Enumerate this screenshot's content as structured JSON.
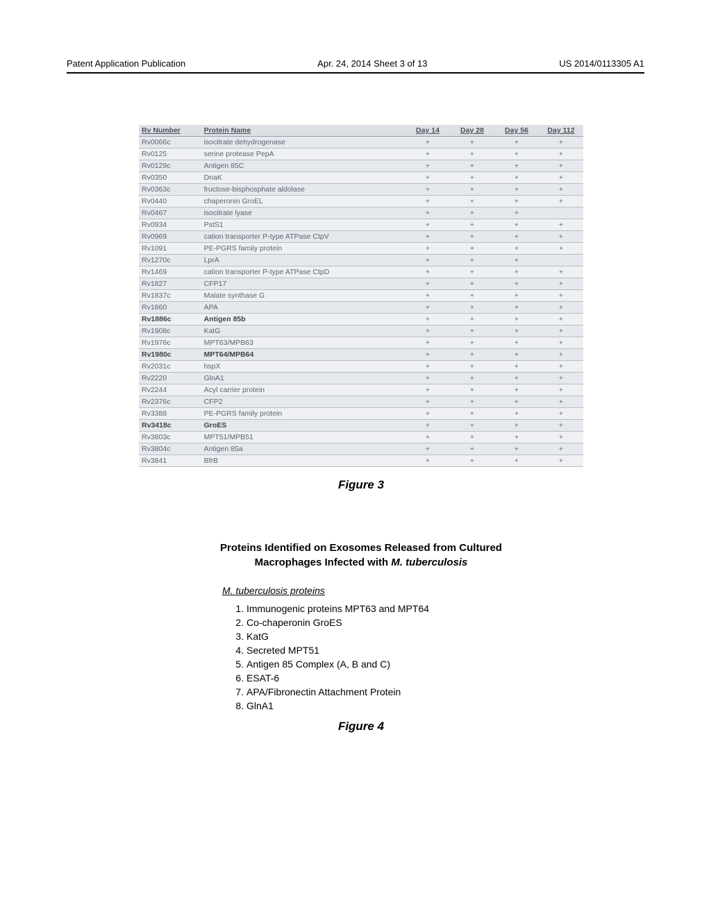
{
  "header": {
    "left": "Patent Application Publication",
    "mid": "Apr. 24, 2014  Sheet 3 of 13",
    "right": "US 2014/0113305 A1"
  },
  "figure3": {
    "caption": "Figure 3",
    "columns": {
      "rv": "Rv Number",
      "protein": "Protein Name",
      "d14": "Day 14",
      "d28": "Day 28",
      "d56": "Day 56",
      "d112": "Day 112"
    },
    "rows": [
      {
        "rv": "Rv0066c",
        "name": "isocitrate dehydrogenase",
        "m": [
          "+",
          "+",
          "+",
          "+"
        ],
        "bold": false
      },
      {
        "rv": "Rv0125",
        "name": "serine protease PepA",
        "m": [
          "+",
          "+",
          "+",
          "+"
        ],
        "bold": false
      },
      {
        "rv": "Rv0129c",
        "name": "Antigen 85C",
        "m": [
          "+",
          "+",
          "+",
          "+"
        ],
        "bold": false
      },
      {
        "rv": "Rv0350",
        "name": "DnaK",
        "m": [
          "+",
          "+",
          "+",
          "+"
        ],
        "bold": false
      },
      {
        "rv": "Rv0363c",
        "name": "fructose-bisphosphate aldolase",
        "m": [
          "+",
          "+",
          "+",
          "+"
        ],
        "bold": false
      },
      {
        "rv": "Rv0440",
        "name": "chaperonin GroEL",
        "m": [
          "+",
          "+",
          "+",
          "+"
        ],
        "bold": false
      },
      {
        "rv": "Rv0467",
        "name": "isocitrate lyase",
        "m": [
          "+",
          "+",
          "+",
          ""
        ],
        "bold": false
      },
      {
        "rv": "Rv0934",
        "name": "PstS1",
        "m": [
          "+",
          "+",
          "+",
          "+"
        ],
        "bold": false
      },
      {
        "rv": "Rv0969",
        "name": "cation transporter P-type ATPase CtpV",
        "m": [
          "+",
          "+",
          "+",
          "+"
        ],
        "bold": false
      },
      {
        "rv": "Rv1091",
        "name": "PE-PGRS family protein",
        "m": [
          "+",
          "+",
          "+",
          "+"
        ],
        "bold": false
      },
      {
        "rv": "Rv1270c",
        "name": "LprA",
        "m": [
          "+",
          "+",
          "+",
          ""
        ],
        "bold": false
      },
      {
        "rv": "Rv1469",
        "name": "cation transporter P-type ATPase CtpD",
        "m": [
          "+",
          "+",
          "+",
          "+"
        ],
        "bold": false
      },
      {
        "rv": "Rv1827",
        "name": "CFP17",
        "m": [
          "+",
          "+",
          "+",
          "+"
        ],
        "bold": false
      },
      {
        "rv": "Rv1837c",
        "name": "Malate synthase G",
        "m": [
          "+",
          "+",
          "+",
          "+"
        ],
        "bold": false
      },
      {
        "rv": "Rv1860",
        "name": "APA",
        "m": [
          "+",
          "+",
          "+",
          "+"
        ],
        "bold": false
      },
      {
        "rv": "Rv1886c",
        "name": "Antigen 85b",
        "m": [
          "+",
          "+",
          "+",
          "+"
        ],
        "bold": true
      },
      {
        "rv": "Rv1908c",
        "name": "KatG",
        "m": [
          "+",
          "+",
          "+",
          "+"
        ],
        "bold": false
      },
      {
        "rv": "Rv1976c",
        "name": "MPT63/MPB63",
        "m": [
          "+",
          "+",
          "+",
          "+"
        ],
        "bold": false
      },
      {
        "rv": "Rv1980c",
        "name": "MPT64/MPB64",
        "m": [
          "+",
          "+",
          "+",
          "+"
        ],
        "bold": true
      },
      {
        "rv": "Rv2031c",
        "name": "hspX",
        "m": [
          "+",
          "+",
          "+",
          "+"
        ],
        "bold": false
      },
      {
        "rv": "Rv2220",
        "name": "GlnA1",
        "m": [
          "+",
          "+",
          "+",
          "+"
        ],
        "bold": false
      },
      {
        "rv": "Rv2244",
        "name": "Acyl carrier protein",
        "m": [
          "+",
          "+",
          "+",
          "+"
        ],
        "bold": false
      },
      {
        "rv": "Rv2376c",
        "name": "CFP2",
        "m": [
          "+",
          "+",
          "+",
          "+"
        ],
        "bold": false
      },
      {
        "rv": "Rv3388",
        "name": "PE-PGRS family protein",
        "m": [
          "+",
          "+",
          "+",
          "+"
        ],
        "bold": false
      },
      {
        "rv": "Rv3418c",
        "name": "GroES",
        "m": [
          "+",
          "+",
          "+",
          "+"
        ],
        "bold": true
      },
      {
        "rv": "Rv3803c",
        "name": "MPT51/MPB51",
        "m": [
          "+",
          "+",
          "+",
          "+"
        ],
        "bold": false
      },
      {
        "rv": "Rv3804c",
        "name": "Antigen 85a",
        "m": [
          "+",
          "+",
          "+",
          "+"
        ],
        "bold": false
      },
      {
        "rv": "Rv3841",
        "name": "BfrB",
        "m": [
          "+",
          "+",
          "+",
          "+"
        ],
        "bold": false
      }
    ],
    "style": {
      "header_bg": "#dde1e6",
      "row_odd_bg": "#e5e8ec",
      "row_even_bg": "#eef0f3",
      "border_color": "#b9bec5",
      "text_color": "#5c6570",
      "font_size_pt": 8,
      "mark_symbol": "+"
    }
  },
  "figure4": {
    "title_line1": "Proteins Identified on Exosomes Released from Cultured",
    "title_line2_prefix": "Macrophages Infected with ",
    "title_line2_ital": "M. tuberculosis",
    "subtitle_ital": "M. tuberculosis",
    "subtitle_rest": " proteins",
    "items": [
      "Immunogenic proteins MPT63 and MPT64",
      "Co-chaperonin GroES",
      "KatG",
      "Secreted MPT51",
      "Antigen 85 Complex (A, B and C)",
      "ESAT-6",
      "APA/Fibronectin Attachment Protein",
      "GlnA1"
    ],
    "caption": "Figure 4",
    "style": {
      "title_fontsize_pt": 11,
      "list_fontsize_pt": 10,
      "text_color": "#000000"
    }
  }
}
